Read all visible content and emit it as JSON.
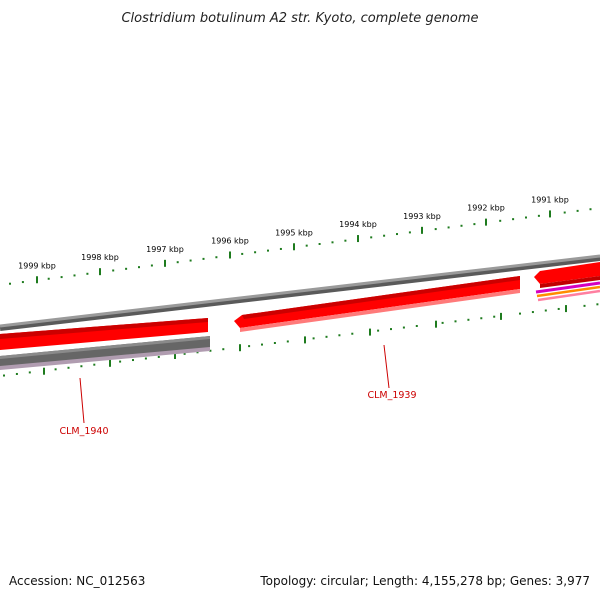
{
  "title": "Clostridium botulinum A2 str. Kyoto, complete genome",
  "ruler": {
    "outer_labels": [
      "1999 kbp",
      "1998 kbp",
      "1997 kbp",
      "1996 kbp",
      "1995 kbp",
      "1994 kbp",
      "1993 kbp",
      "1992 kbp",
      "1991 kbp"
    ],
    "tick_color": "#1e7b1e"
  },
  "genes": [
    {
      "name": "CLM_1940",
      "color": "#cc0000"
    },
    {
      "name": "CLM_1939",
      "color": "#cc0000"
    }
  ],
  "track_colors": {
    "backbone": "#808080",
    "cds": "#ff0000",
    "cds_shadow": "#c80000",
    "gene_dark": "#606060",
    "accent_magenta": "#d400c0",
    "accent_orange": "#ff8c00",
    "accent_pink": "#ff7fa0"
  },
  "footer": {
    "accession": "Accession: NC_012563",
    "summary": "Topology: circular; Length: 4,155,278 bp; Genes: 3,977"
  }
}
